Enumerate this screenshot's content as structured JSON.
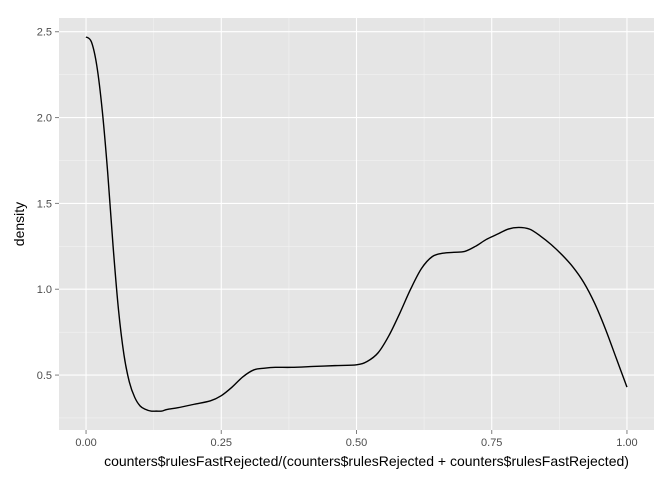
{
  "chart_data": {
    "type": "line",
    "xlabel": "counters$rulesFastRejected/(counters$rulesRejected + counters$rulesFastRejected)",
    "ylabel": "density",
    "xlim": [
      -0.05,
      1.05
    ],
    "ylim": [
      0.18,
      2.58
    ],
    "x_ticks": [
      0.0,
      0.25,
      0.5,
      0.75,
      1.0
    ],
    "x_tick_labels": [
      "0.00",
      "0.25",
      "0.50",
      "0.75",
      "1.00"
    ],
    "y_ticks": [
      0.5,
      1.0,
      1.5,
      2.0,
      2.5
    ],
    "y_tick_labels": [
      "0.5",
      "1.0",
      "1.5",
      "2.0",
      "2.5"
    ],
    "grid": true,
    "background": "#e5e5e5",
    "grid_color": "#ffffff",
    "line_color": "#000000",
    "series": [
      {
        "x": [
          0.0,
          0.01,
          0.02,
          0.03,
          0.04,
          0.05,
          0.06,
          0.07,
          0.08,
          0.09,
          0.1,
          0.11,
          0.12,
          0.13,
          0.14,
          0.15,
          0.17,
          0.2,
          0.23,
          0.25,
          0.27,
          0.29,
          0.31,
          0.33,
          0.35,
          0.38,
          0.42,
          0.46,
          0.5,
          0.52,
          0.54,
          0.56,
          0.58,
          0.6,
          0.62,
          0.64,
          0.66,
          0.68,
          0.7,
          0.72,
          0.74,
          0.76,
          0.78,
          0.8,
          0.82,
          0.84,
          0.86,
          0.88,
          0.9,
          0.92,
          0.94,
          0.96,
          0.98,
          1.0
        ],
        "y": [
          2.47,
          2.44,
          2.3,
          2.04,
          1.68,
          1.25,
          0.88,
          0.62,
          0.46,
          0.37,
          0.32,
          0.3,
          0.29,
          0.29,
          0.29,
          0.3,
          0.31,
          0.33,
          0.35,
          0.38,
          0.43,
          0.49,
          0.53,
          0.54,
          0.545,
          0.545,
          0.55,
          0.555,
          0.56,
          0.58,
          0.63,
          0.73,
          0.86,
          1.0,
          1.12,
          1.19,
          1.21,
          1.215,
          1.22,
          1.25,
          1.29,
          1.32,
          1.35,
          1.36,
          1.35,
          1.31,
          1.26,
          1.2,
          1.13,
          1.04,
          0.92,
          0.77,
          0.6,
          0.43
        ]
      }
    ]
  }
}
